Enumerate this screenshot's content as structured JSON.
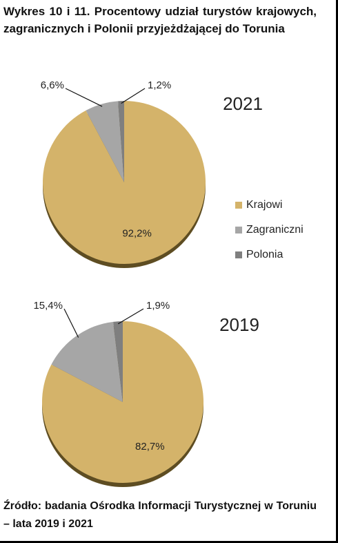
{
  "header": {
    "title": "Wykres 10 i 11. Procentowy udział turystów krajowych, zagranicznych i Polonii przyjeżdżającej do Torunia"
  },
  "footer": {
    "source": "Źródło: badania Ośrodka Informacji Turystycznej w Toruniu – lata 2019 i 2021"
  },
  "chart_data": [
    {
      "type": "pie",
      "title": "2021",
      "categories": [
        "Krajowi",
        "Zagraniczni",
        "Polonia"
      ],
      "values": [
        92.2,
        6.6,
        1.2
      ],
      "value_labels": [
        "92,2%",
        "6,6%",
        "1,2%"
      ],
      "colors": [
        "#d4b36a",
        "#a6a6a6",
        "#7f7f7f"
      ]
    },
    {
      "type": "pie",
      "title": "2019",
      "categories": [
        "Krajowi",
        "Zagraniczni",
        "Polonia"
      ],
      "values": [
        82.7,
        15.4,
        1.9
      ],
      "value_labels": [
        "82,7%",
        "15,4%",
        "1,9%"
      ],
      "colors": [
        "#d4b36a",
        "#a6a6a6",
        "#7f7f7f"
      ]
    }
  ]
}
